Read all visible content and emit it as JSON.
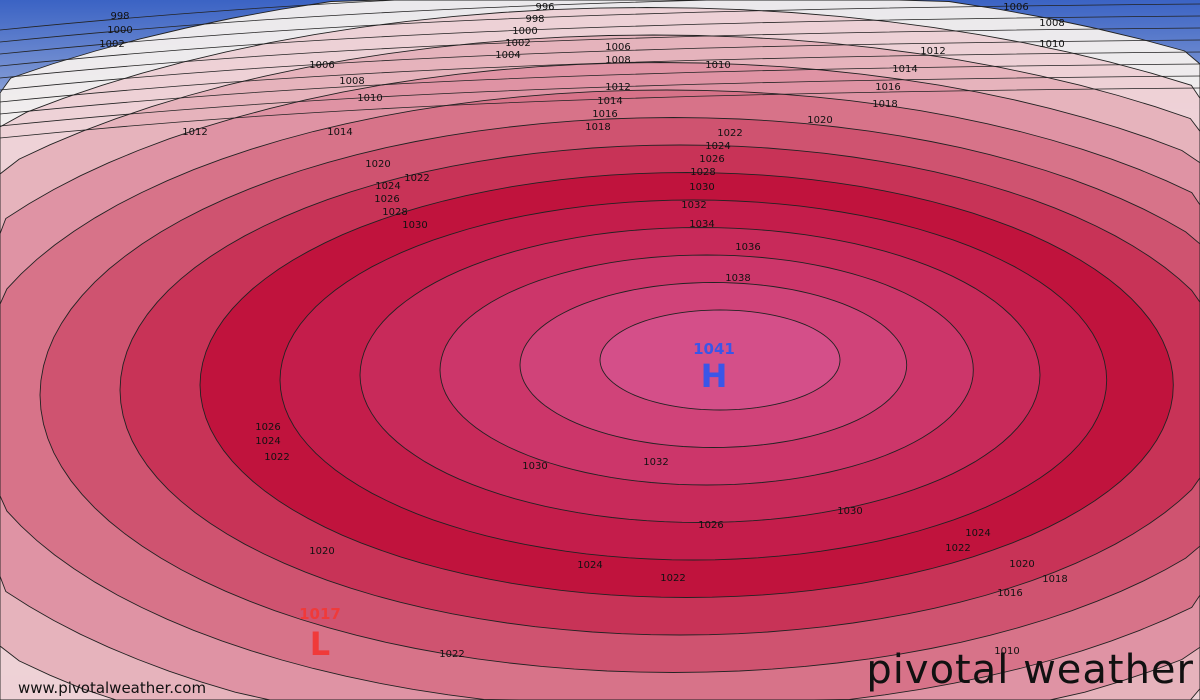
{
  "map": {
    "type": "mean sea level pressure contours",
    "contour_interval": 2,
    "levels": [
      996,
      998,
      1000,
      1002,
      1004,
      1006,
      1008,
      1010,
      1012,
      1014,
      1016,
      1018,
      1020,
      1022,
      1024,
      1026,
      1028,
      1030,
      1032,
      1034,
      1036,
      1038,
      1040
    ],
    "colors": {
      "low": "#3b63c4",
      "neutral": "#f4f0ee",
      "high": "#c0123c",
      "peak": "#d4508a",
      "contour": "#222222"
    },
    "high_center": {
      "label": "H",
      "value": "1041",
      "color": "#3a56e8"
    },
    "low_center": {
      "label": "L",
      "value": "1017",
      "color": "#f03a3a"
    },
    "contour_labels": [
      "998",
      "1000",
      "1002",
      "996",
      "998",
      "1000",
      "1002",
      "1004",
      "1006",
      "1008",
      "1010",
      "1012",
      "1014",
      "1006",
      "1008",
      "1010",
      "1012",
      "1014",
      "1016",
      "1018",
      "1006",
      "1008",
      "1010",
      "1012",
      "1014",
      "1016",
      "1018",
      "1020",
      "1022",
      "1024",
      "1026",
      "1028",
      "1030",
      "1032",
      "1034",
      "1036",
      "1038",
      "1020",
      "1022",
      "1024",
      "1026",
      "1028",
      "1030",
      "1026",
      "1024",
      "1022",
      "1020",
      "1030",
      "1032",
      "1026",
      "1024",
      "1022",
      "1022",
      "1030",
      "1024",
      "1022",
      "1020",
      "1018",
      "1016",
      "1010"
    ]
  },
  "footer": {
    "website": "www.pivotalweather.com",
    "brand": "pivotal weather",
    "brand_logo_icon": "sun-gear-icon"
  }
}
